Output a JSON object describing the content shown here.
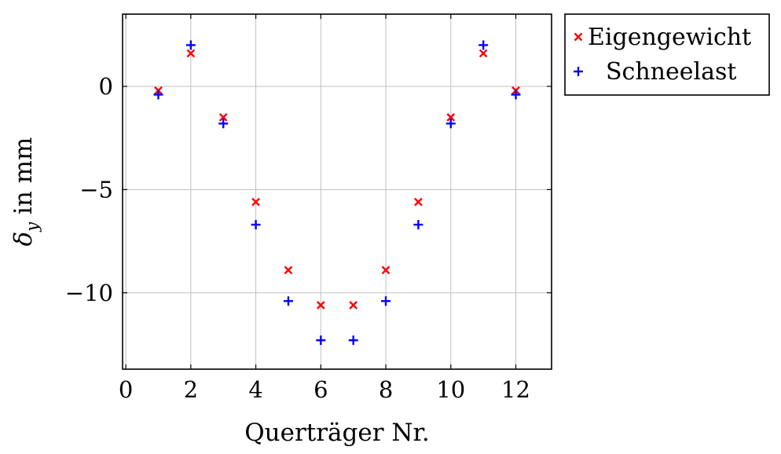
{
  "chart_data": {
    "type": "scatter",
    "title": "",
    "xlabel": "Querträger Nr.",
    "ylabel_parts": {
      "symbol": "δ",
      "subscript": "y",
      "rest": " in mm"
    },
    "xlim": [
      -0.1,
      13.1
    ],
    "ylim": [
      -13.7,
      3.5
    ],
    "xticks": [
      0,
      2,
      4,
      6,
      8,
      10,
      12
    ],
    "yticks": [
      0,
      -5,
      -10
    ],
    "xtick_labels": [
      "0",
      "2",
      "4",
      "6",
      "8",
      "10",
      "12"
    ],
    "ytick_labels": [
      "0",
      "−5",
      "−10"
    ],
    "grid": true,
    "legend_position": "outside-top-right",
    "series": [
      {
        "name": "Eigengewicht",
        "marker": "x",
        "color": "#ff0000",
        "x": [
          1,
          2,
          3,
          4,
          5,
          6,
          7,
          8,
          9,
          10,
          11,
          12
        ],
        "y": [
          -0.2,
          1.6,
          -1.5,
          -5.6,
          -8.9,
          -10.6,
          -10.6,
          -8.9,
          -5.6,
          -1.5,
          1.6,
          -0.2
        ]
      },
      {
        "name": "Schneelast",
        "marker": "+",
        "color": "#0000ff",
        "x": [
          1,
          2,
          3,
          4,
          5,
          6,
          7,
          8,
          9,
          10,
          11,
          12
        ],
        "y": [
          -0.4,
          2.0,
          -1.8,
          -6.7,
          -10.4,
          -12.3,
          -12.3,
          -10.4,
          -6.7,
          -1.8,
          2.0,
          -0.4
        ]
      }
    ]
  }
}
